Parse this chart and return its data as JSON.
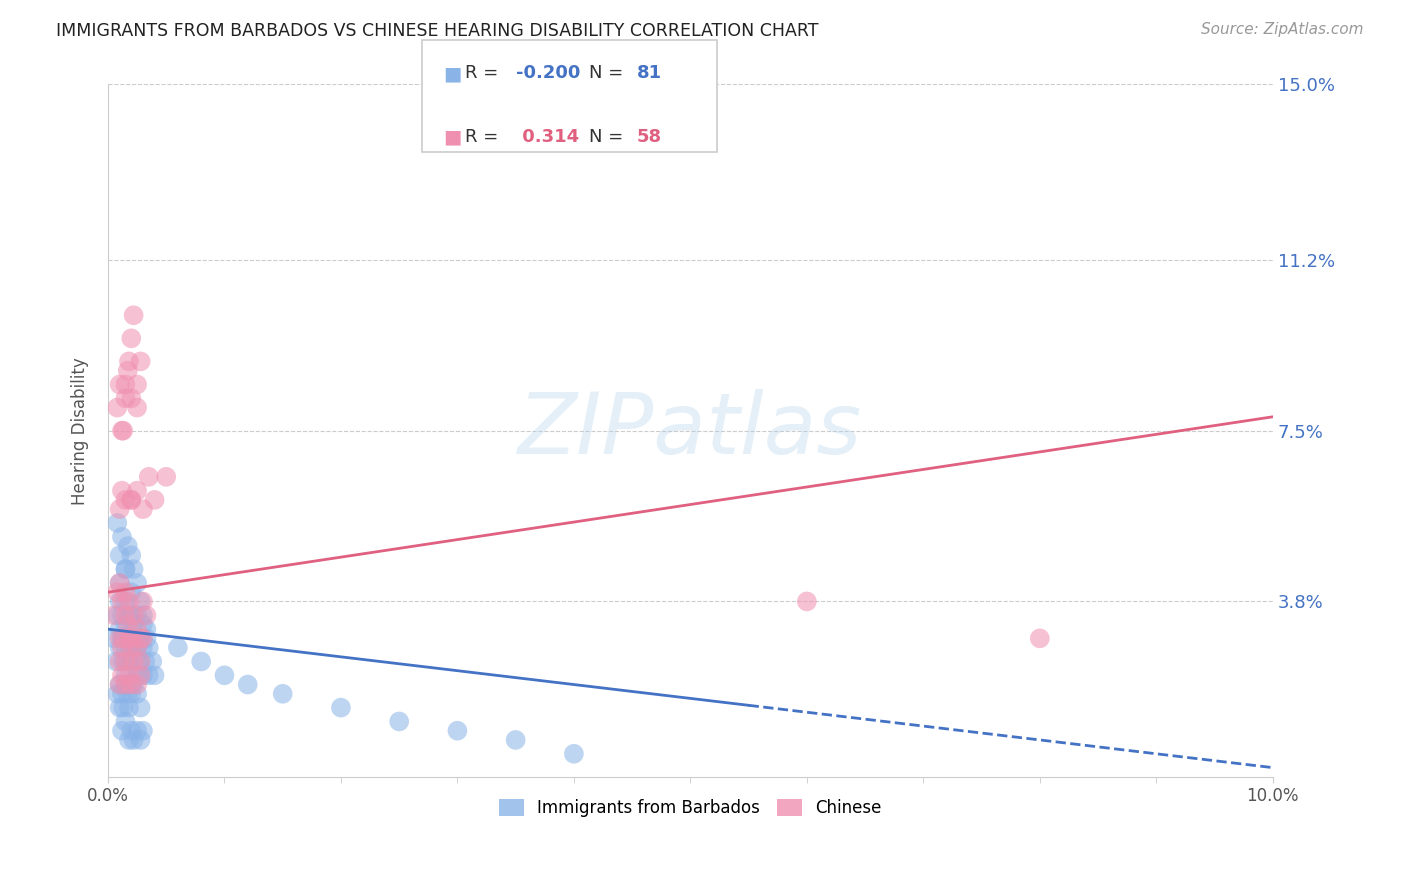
{
  "title": "IMMIGRANTS FROM BARBADOS VS CHINESE HEARING DISABILITY CORRELATION CHART",
  "source": "Source: ZipAtlas.com",
  "ylabel": "Hearing Disability",
  "legend_label1": "Immigrants from Barbados",
  "legend_label2": "Chinese",
  "R1": -0.2,
  "N1": 81,
  "R2": 0.314,
  "N2": 58,
  "color1": "#8ab4e8",
  "color2": "#f090b0",
  "trendline1_color": "#4472c4",
  "trendline2_color": "#e06080",
  "xlim": [
    0.0,
    0.1
  ],
  "ylim": [
    0.0,
    0.15
  ],
  "yticks": [
    0.038,
    0.075,
    0.112,
    0.15
  ],
  "ytick_labels": [
    "3.8%",
    "7.5%",
    "11.2%",
    "15.0%"
  ],
  "xtick_positions": [
    0.0,
    0.1
  ],
  "xtick_labels": [
    "0.0%",
    "10.0%"
  ],
  "watermark": "ZIPatlas",
  "background_color": "#ffffff",
  "trendline1_x0": 0.0,
  "trendline1_y0": 0.032,
  "trendline1_x1": 0.1,
  "trendline1_y1": 0.002,
  "trendline1_solid_end": 0.055,
  "trendline2_x0": 0.0,
  "trendline2_y0": 0.04,
  "trendline2_x1": 0.1,
  "trendline2_y1": 0.078,
  "scatter1_x": [
    0.0005,
    0.0007,
    0.0008,
    0.001,
    0.001,
    0.001,
    0.001,
    0.0012,
    0.0012,
    0.0013,
    0.0013,
    0.0015,
    0.0015,
    0.0015,
    0.0015,
    0.0015,
    0.0017,
    0.0017,
    0.0018,
    0.0018,
    0.002,
    0.002,
    0.002,
    0.002,
    0.0022,
    0.0022,
    0.0025,
    0.0025,
    0.0025,
    0.0027,
    0.0028,
    0.003,
    0.003,
    0.003,
    0.0032,
    0.0033,
    0.0035,
    0.0035,
    0.0038,
    0.004,
    0.0008,
    0.001,
    0.001,
    0.0012,
    0.0013,
    0.0015,
    0.0017,
    0.0018,
    0.002,
    0.0022,
    0.0025,
    0.0028,
    0.0012,
    0.0015,
    0.0018,
    0.002,
    0.0022,
    0.0025,
    0.0028,
    0.003,
    0.001,
    0.0012,
    0.0015,
    0.0017,
    0.002,
    0.0022,
    0.0025,
    0.0028,
    0.003,
    0.0033,
    0.006,
    0.008,
    0.01,
    0.012,
    0.015,
    0.02,
    0.025,
    0.03,
    0.035,
    0.04,
    0.0008
  ],
  "scatter1_y": [
    0.03,
    0.025,
    0.035,
    0.028,
    0.032,
    0.038,
    0.042,
    0.03,
    0.035,
    0.025,
    0.03,
    0.022,
    0.028,
    0.033,
    0.038,
    0.045,
    0.025,
    0.03,
    0.028,
    0.035,
    0.025,
    0.03,
    0.035,
    0.04,
    0.028,
    0.033,
    0.022,
    0.028,
    0.035,
    0.025,
    0.03,
    0.022,
    0.028,
    0.033,
    0.025,
    0.03,
    0.022,
    0.028,
    0.025,
    0.022,
    0.018,
    0.015,
    0.02,
    0.018,
    0.015,
    0.02,
    0.018,
    0.015,
    0.018,
    0.02,
    0.018,
    0.015,
    0.01,
    0.012,
    0.008,
    0.01,
    0.008,
    0.01,
    0.008,
    0.01,
    0.048,
    0.052,
    0.045,
    0.05,
    0.048,
    0.045,
    0.042,
    0.038,
    0.035,
    0.032,
    0.028,
    0.025,
    0.022,
    0.02,
    0.018,
    0.015,
    0.012,
    0.01,
    0.008,
    0.005,
    0.055
  ],
  "scatter2_x": [
    0.0005,
    0.0008,
    0.001,
    0.001,
    0.0012,
    0.0013,
    0.0015,
    0.0015,
    0.0017,
    0.0018,
    0.002,
    0.0022,
    0.0025,
    0.0028,
    0.003,
    0.0033,
    0.001,
    0.0012,
    0.0015,
    0.0018,
    0.002,
    0.0022,
    0.0025,
    0.0028,
    0.003,
    0.0013,
    0.0015,
    0.0018,
    0.002,
    0.0025,
    0.0008,
    0.001,
    0.0012,
    0.0015,
    0.0017,
    0.002,
    0.0022,
    0.0025,
    0.0028,
    0.002,
    0.001,
    0.0012,
    0.0015,
    0.0018,
    0.002,
    0.0025,
    0.0028,
    0.0015,
    0.06,
    0.08,
    0.001,
    0.0012,
    0.002,
    0.0025,
    0.003,
    0.0035,
    0.004,
    0.005
  ],
  "scatter2_y": [
    0.035,
    0.04,
    0.03,
    0.042,
    0.038,
    0.03,
    0.035,
    0.04,
    0.033,
    0.038,
    0.03,
    0.035,
    0.032,
    0.03,
    0.038,
    0.035,
    0.025,
    0.028,
    0.025,
    0.03,
    0.028,
    0.025,
    0.028,
    0.025,
    0.03,
    0.075,
    0.085,
    0.09,
    0.082,
    0.08,
    0.08,
    0.085,
    0.075,
    0.082,
    0.088,
    0.095,
    0.1,
    0.085,
    0.09,
    0.06,
    0.02,
    0.022,
    0.02,
    0.022,
    0.02,
    0.02,
    0.022,
    0.06,
    0.038,
    0.03,
    0.058,
    0.062,
    0.06,
    0.062,
    0.058,
    0.065,
    0.06,
    0.065
  ]
}
